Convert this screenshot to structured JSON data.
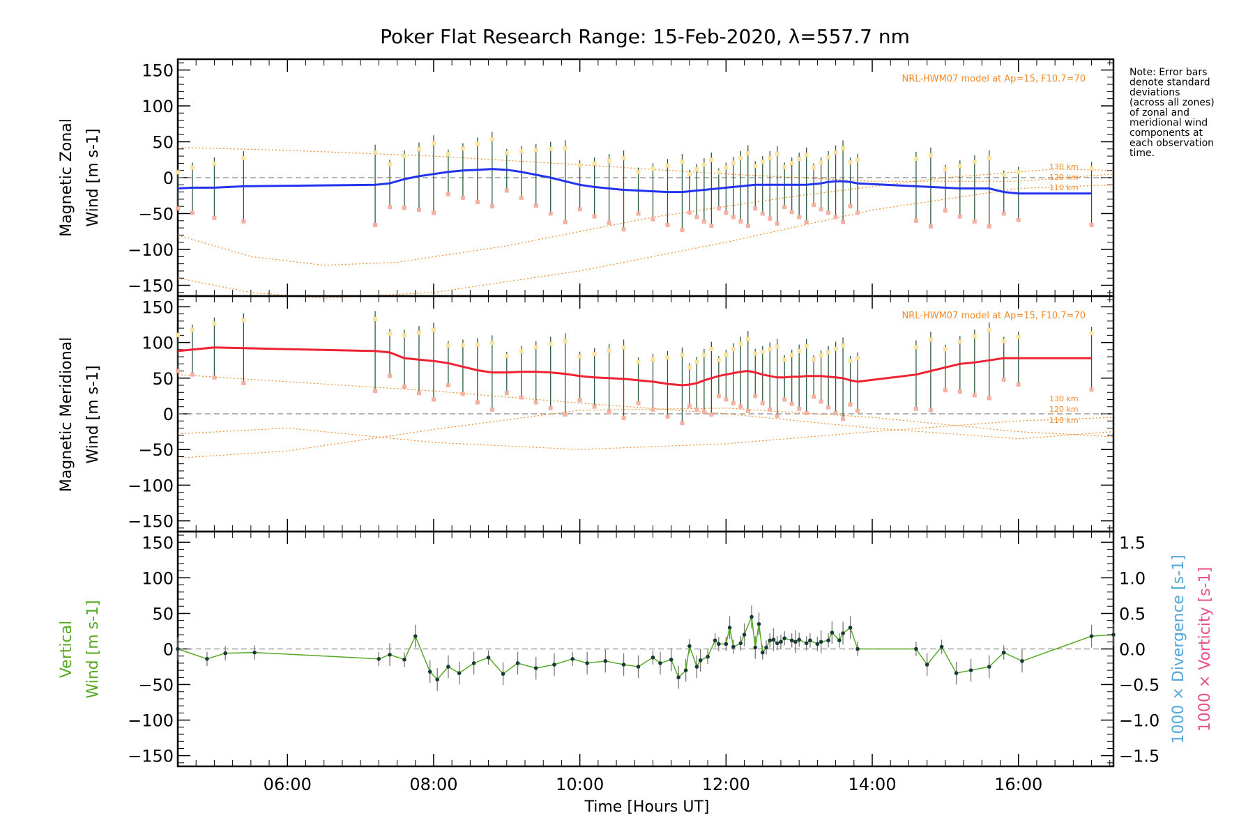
{
  "title": "Poker Flat Research Range: 15-Feb-2020, λ=557.7 nm",
  "note": [
    "Note: Error bars",
    "denote standard",
    "deviations",
    "(across all zones)",
    "of zonal and",
    "meridional wind",
    "components at",
    "each observation",
    "time."
  ],
  "colors": {
    "zonal": "#2233ee",
    "meridional": "#ee2233",
    "vertical": "#55aa22",
    "model": "#f08a2a",
    "divergence": "#55a8d8",
    "vorticity": "#e8508a",
    "zero_line": "#888888",
    "error_bar": "#2f5a3a"
  },
  "chart_data": [
    {
      "type": "line",
      "panel": "zonal",
      "ylabel": "Magnetic Zonal Wind [m s-1]",
      "ylim": [
        -165,
        165
      ],
      "yticks": [
        -150,
        -100,
        -50,
        0,
        50,
        100,
        150
      ],
      "model_label": "NRL-HWM07 model at Ap=15, F10.7=70",
      "altitude_labels": [
        "130 km",
        "120 km",
        "110 km"
      ],
      "series": [
        {
          "x": [
            4.5,
            4.7,
            5.0,
            5.4,
            7.2,
            7.4,
            7.6,
            7.8,
            8.0,
            8.2,
            8.4,
            8.6,
            8.8,
            9.0,
            9.2,
            9.4,
            9.6,
            9.8,
            10.0,
            10.2,
            10.4,
            10.6,
            10.8,
            11.0,
            11.2,
            11.4,
            11.5,
            11.6,
            11.7,
            11.8,
            11.9,
            12.0,
            12.1,
            12.2,
            12.3,
            12.4,
            12.5,
            12.6,
            12.7,
            12.8,
            12.9,
            13.0,
            13.1,
            13.2,
            13.3,
            13.4,
            13.5,
            13.6,
            13.7,
            13.8,
            14.6,
            14.8,
            15.0,
            15.2,
            15.4,
            15.6,
            15.8,
            16.0,
            17.0
          ],
          "values": [
            -15,
            -14,
            -14,
            -12,
            -10,
            -8,
            -2,
            2,
            5,
            8,
            10,
            11,
            12,
            11,
            8,
            4,
            0,
            -5,
            -10,
            -13,
            -15,
            -17,
            -18,
            -19,
            -20,
            -20,
            -19,
            -18,
            -17,
            -16,
            -15,
            -14,
            -13,
            -12,
            -11,
            -10,
            -10,
            -10,
            -10,
            -10,
            -10,
            -10,
            -10,
            -9,
            -8,
            -6,
            -5,
            -5,
            -6,
            -8,
            -12,
            -13,
            -14,
            -15,
            -15,
            -15,
            -20,
            -22,
            -22
          ]
        }
      ],
      "model_curves": [
        {
          "x": [
            4.5,
            6,
            8,
            10,
            12,
            14,
            16,
            17.3
          ],
          "values": [
            42,
            38,
            30,
            18,
            5,
            -5,
            -5,
            5
          ]
        },
        {
          "x": [
            4.5,
            5.5,
            6.5,
            7.5,
            9,
            11,
            13,
            15,
            16.5,
            17.3
          ],
          "values": [
            -80,
            -110,
            -122,
            -118,
            -95,
            -55,
            -25,
            0,
            12,
            10
          ]
        },
        {
          "x": [
            4.5,
            5.5,
            6.5,
            8,
            10,
            12,
            14,
            16,
            17.3
          ],
          "values": [
            -140,
            -160,
            -168,
            -160,
            -130,
            -90,
            -45,
            -15,
            -10
          ]
        }
      ]
    },
    {
      "type": "line",
      "panel": "meridional",
      "ylabel": "Magnetic Meridional Wind [m s-1]",
      "ylim": [
        -165,
        165
      ],
      "yticks": [
        -150,
        -100,
        -50,
        0,
        50,
        100,
        150
      ],
      "model_label": "NRL-HWM07 model at Ap=15, F10.7=70",
      "altitude_labels": [
        "130 km",
        "120 km",
        "110 km"
      ],
      "series": [
        {
          "x": [
            4.5,
            4.7,
            5.0,
            5.4,
            7.2,
            7.4,
            7.6,
            7.8,
            8.0,
            8.2,
            8.4,
            8.6,
            8.8,
            9.0,
            9.2,
            9.4,
            9.6,
            9.8,
            10.0,
            10.2,
            10.4,
            10.6,
            10.8,
            11.0,
            11.2,
            11.4,
            11.5,
            11.6,
            11.7,
            11.8,
            11.9,
            12.0,
            12.1,
            12.2,
            12.3,
            12.4,
            12.5,
            12.6,
            12.7,
            12.8,
            12.9,
            13.0,
            13.1,
            13.2,
            13.3,
            13.4,
            13.5,
            13.6,
            13.7,
            13.8,
            14.6,
            14.8,
            15.0,
            15.2,
            15.4,
            15.6,
            15.8,
            16.0,
            17.0
          ],
          "values": [
            88,
            90,
            93,
            92,
            88,
            86,
            78,
            76,
            74,
            71,
            66,
            61,
            58,
            58,
            59,
            59,
            58,
            56,
            53,
            51,
            50,
            49,
            47,
            45,
            42,
            40,
            41,
            43,
            47,
            50,
            53,
            55,
            57,
            59,
            60,
            58,
            55,
            53,
            51,
            51,
            52,
            52,
            53,
            53,
            53,
            52,
            51,
            50,
            47,
            45,
            55,
            60,
            65,
            70,
            72,
            75,
            78,
            78,
            78
          ]
        }
      ],
      "model_curves": [
        {
          "x": [
            4.5,
            6,
            8,
            10,
            12,
            14,
            16,
            17.3
          ],
          "values": [
            55,
            45,
            32,
            15,
            0,
            -20,
            -35,
            -25
          ]
        },
        {
          "x": [
            4.5,
            6,
            8,
            10,
            12,
            14,
            16,
            17.3
          ],
          "values": [
            -62,
            -52,
            -22,
            5,
            8,
            -5,
            -25,
            -32
          ]
        },
        {
          "x": [
            4.5,
            6,
            8,
            10,
            12,
            14,
            16,
            17.3
          ],
          "values": [
            -28,
            -20,
            -40,
            -50,
            -42,
            -25,
            -10,
            -5
          ]
        }
      ]
    },
    {
      "type": "line",
      "panel": "vertical",
      "ylabel": "Vertical Wind [m s-1]",
      "ylim": [
        -165,
        165
      ],
      "yticks": [
        -150,
        -100,
        -50,
        0,
        50,
        100,
        150
      ],
      "y2label_divergence": "1000 × Divergence [s-1]",
      "y2label_vorticity": "1000 × Vorticity [s-1]",
      "y2ticks": [
        "1.5",
        "1.0",
        "0.5",
        "0.0",
        "−0.5",
        "−1.0",
        "−1.5"
      ],
      "series": [
        {
          "x": [
            4.5,
            4.9,
            5.15,
            5.55,
            7.25,
            7.4,
            7.6,
            7.75,
            7.95,
            8.05,
            8.2,
            8.35,
            8.55,
            8.75,
            8.95,
            9.15,
            9.4,
            9.65,
            9.9,
            10.1,
            10.35,
            10.6,
            10.8,
            11.0,
            11.1,
            11.25,
            11.35,
            11.45,
            11.5,
            11.6,
            11.65,
            11.75,
            11.85,
            11.9,
            12.0,
            12.05,
            12.1,
            12.2,
            12.25,
            12.35,
            12.4,
            12.45,
            12.5,
            12.55,
            12.6,
            12.65,
            12.7,
            12.75,
            12.8,
            12.9,
            12.95,
            13.0,
            13.1,
            13.15,
            13.25,
            13.3,
            13.4,
            13.45,
            13.55,
            13.6,
            13.7,
            13.8,
            14.6,
            14.75,
            14.95,
            15.15,
            15.35,
            15.6,
            15.8,
            16.05,
            17.0,
            17.3
          ],
          "values": [
            0,
            -14,
            -6,
            -5,
            -14,
            -8,
            -15,
            18,
            -32,
            -43,
            -25,
            -34,
            -20,
            -12,
            -35,
            -20,
            -27,
            -22,
            -14,
            -20,
            -17,
            -22,
            -25,
            -12,
            -20,
            -15,
            -40,
            -30,
            4,
            -25,
            -16,
            -11,
            12,
            7,
            7,
            30,
            3,
            8,
            20,
            45,
            2,
            35,
            -5,
            2,
            12,
            13,
            8,
            10,
            15,
            12,
            10,
            13,
            8,
            12,
            7,
            10,
            12,
            23,
            12,
            22,
            30,
            0,
            0,
            -22,
            3,
            -34,
            -30,
            -25,
            -5,
            -17,
            18,
            20
          ]
        }
      ]
    }
  ],
  "xaxis": {
    "label": "Time [Hours UT]",
    "range": [
      4.5,
      17.3
    ],
    "ticks": [
      6,
      8,
      10,
      12,
      14,
      16
    ],
    "tick_labels": [
      "06:00",
      "08:00",
      "10:00",
      "12:00",
      "14:00",
      "16:00"
    ]
  }
}
